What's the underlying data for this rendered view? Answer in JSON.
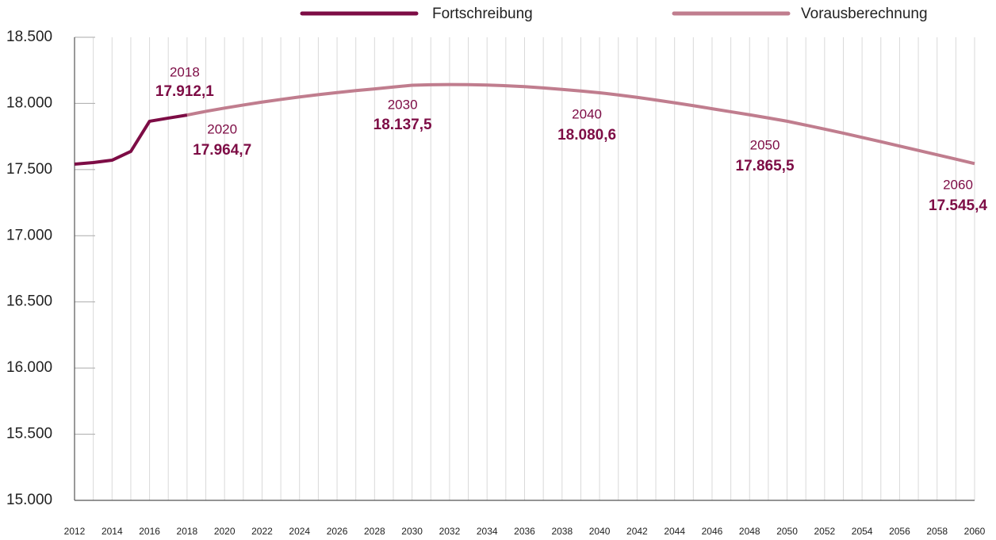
{
  "chart_data": {
    "type": "line",
    "x": [
      2012,
      2013,
      2014,
      2015,
      2016,
      2017,
      2018,
      2019,
      2020,
      2021,
      2022,
      2023,
      2024,
      2025,
      2026,
      2027,
      2028,
      2029,
      2030,
      2031,
      2032,
      2033,
      2034,
      2035,
      2036,
      2037,
      2038,
      2039,
      2040,
      2041,
      2042,
      2043,
      2044,
      2045,
      2046,
      2047,
      2048,
      2049,
      2050,
      2051,
      2052,
      2053,
      2054,
      2055,
      2056,
      2057,
      2058,
      2059,
      2060
    ],
    "series": [
      {
        "name": "Fortschreibung",
        "color": "#7d0c45",
        "values": [
          17541,
          17553,
          17571,
          17637,
          17865,
          17889,
          17912.1,
          null,
          null,
          null,
          null,
          null,
          null,
          null,
          null,
          null,
          null,
          null,
          null,
          null,
          null,
          null,
          null,
          null,
          null,
          null,
          null,
          null,
          null,
          null,
          null,
          null,
          null,
          null,
          null,
          null,
          null,
          null,
          null,
          null,
          null,
          null,
          null,
          null,
          null,
          null,
          null,
          null,
          null
        ]
      },
      {
        "name": "Vorausberechnung",
        "color": "#c07d8e",
        "values": [
          null,
          null,
          null,
          null,
          null,
          null,
          17912.1,
          17940,
          17964.7,
          17988,
          18010,
          18030,
          18049,
          18066,
          18082,
          18097,
          18110,
          18124,
          18137.5,
          18141,
          18143,
          18142,
          18139,
          18134,
          18127,
          18117,
          18106,
          18094,
          18080.6,
          18064,
          18046,
          18026,
          18005,
          17983,
          17960,
          17937,
          17914,
          17890,
          17865.5,
          17836,
          17806,
          17775,
          17743,
          17711,
          17678,
          17645,
          17612,
          17579,
          17545.4
        ]
      }
    ],
    "xlim": [
      2012,
      2060
    ],
    "xticks": [
      2012,
      2014,
      2016,
      2018,
      2020,
      2022,
      2024,
      2026,
      2028,
      2030,
      2032,
      2034,
      2036,
      2038,
      2040,
      2042,
      2044,
      2046,
      2048,
      2050,
      2052,
      2054,
      2056,
      2058,
      2060
    ],
    "ylim": [
      15000,
      18500
    ],
    "yticks": [
      {
        "value": 15000,
        "label": "15.000"
      },
      {
        "value": 15500,
        "label": "15.500"
      },
      {
        "value": 16000,
        "label": "16.000"
      },
      {
        "value": 16500,
        "label": "16.500"
      },
      {
        "value": 17000,
        "label": "17.000"
      },
      {
        "value": 17500,
        "label": "17.500"
      },
      {
        "value": 18000,
        "label": "18.000"
      },
      {
        "value": 18500,
        "label": "18.500"
      }
    ],
    "grid": true,
    "legend": "top",
    "annotations": [
      {
        "x": 2018,
        "label": "17.912,1"
      },
      {
        "x": 2020,
        "label": "17.964,7"
      },
      {
        "x": 2030,
        "label": "18.137,5"
      },
      {
        "x": 2040,
        "label": "18.080,6"
      },
      {
        "x": 2050,
        "label": "17.865,5"
      },
      {
        "x": 2060,
        "label": "17.545,4"
      }
    ]
  }
}
